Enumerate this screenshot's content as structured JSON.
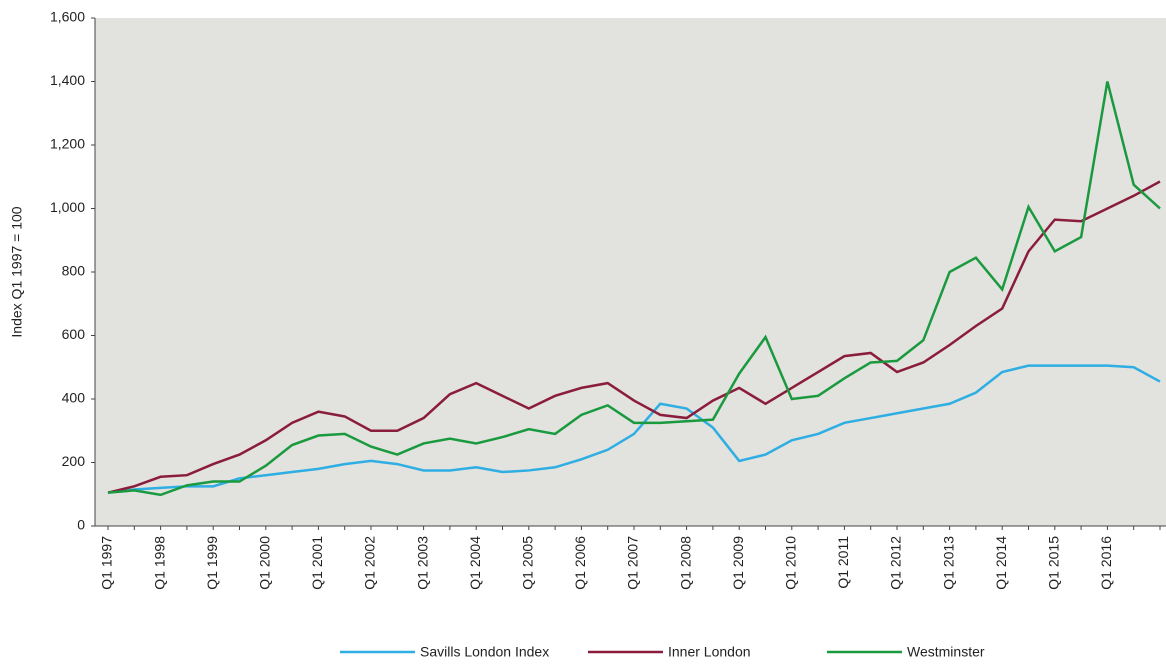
{
  "chart_data": {
    "type": "line",
    "y_label": "Index Q1 1997 = 100",
    "categories": [
      "Q1 1997",
      null,
      "Q1 1998",
      null,
      "Q1 1999",
      null,
      "Q1 2000",
      null,
      "Q1 2001",
      null,
      "Q1 2002",
      null,
      "Q1 2003",
      null,
      "Q1 2004",
      null,
      "Q1 2005",
      null,
      "Q1 2006",
      null,
      "Q1 2007",
      null,
      "Q1 2008",
      null,
      "Q1 2009",
      null,
      "Q1 2010",
      null,
      "Q1 2011",
      null,
      "Q1 2012",
      null,
      "Q1 2013",
      null,
      "Q1 2014",
      null,
      "Q1 2015",
      null,
      "Q1 2016",
      null,
      null
    ],
    "series": [
      {
        "name": "Savills London Index",
        "color": "#2eaee3",
        "values": [
          105,
          115,
          120,
          125,
          125,
          150,
          160,
          170,
          180,
          195,
          205,
          195,
          175,
          175,
          185,
          170,
          175,
          185,
          210,
          240,
          290,
          385,
          370,
          310,
          205,
          225,
          270,
          290,
          325,
          340,
          355,
          370,
          385,
          420,
          485,
          505,
          505,
          505,
          505,
          500,
          455
        ]
      },
      {
        "name": "Inner London",
        "color": "#8a1c3c",
        "values": [
          105,
          125,
          155,
          160,
          195,
          225,
          270,
          325,
          360,
          345,
          300,
          300,
          340,
          415,
          450,
          410,
          370,
          410,
          435,
          450,
          395,
          350,
          340,
          395,
          435,
          385,
          435,
          485,
          535,
          545,
          485,
          515,
          570,
          630,
          685,
          865,
          965,
          960,
          1000,
          1040,
          1085
        ]
      },
      {
        "name": "Westminster",
        "color": "#1a9a3f",
        "values": [
          105,
          112,
          98,
          128,
          140,
          140,
          190,
          255,
          285,
          290,
          250,
          225,
          260,
          275,
          260,
          280,
          305,
          290,
          350,
          380,
          325,
          325,
          330,
          335,
          480,
          595,
          400,
          410,
          465,
          515,
          520,
          585,
          800,
          845,
          745,
          1005,
          865,
          910,
          1400,
          1075,
          1000
        ]
      }
    ],
    "ylim": [
      0,
      1600
    ],
    "yticks": [
      0,
      200,
      400,
      600,
      800,
      {
        "value": 1000,
        "label": "1,000"
      },
      {
        "value": 1200,
        "label": "1,200"
      },
      {
        "value": 1400,
        "label": "1,400"
      },
      {
        "value": 1600,
        "label": "1,600"
      }
    ],
    "legend": "bottom"
  }
}
